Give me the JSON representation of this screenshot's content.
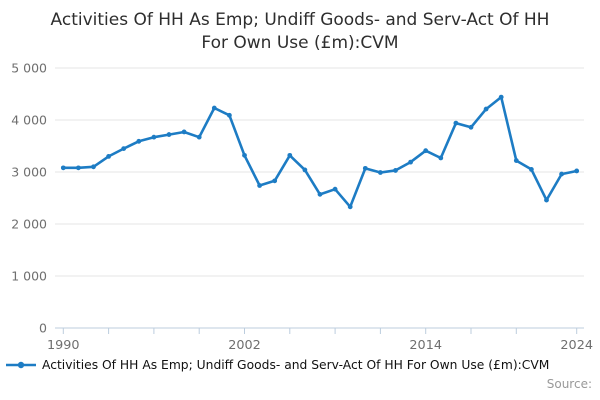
{
  "title": {
    "line1": "Activities Of HH As Emp; Undiff Goods- and Serv-Act Of HH",
    "line2": "For Own Use (£m):CVM"
  },
  "legend": {
    "label": "Activities Of HH As Emp; Undiff Goods- and Serv-Act Of HH For Own Use (£m):CVM"
  },
  "source_label": "Source:",
  "colors": {
    "line": "#1d7cc4",
    "grid": "#e6e6e6",
    "axis": "#bccdde",
    "tick_label": "#6f6f6f"
  },
  "chart_data": {
    "type": "line",
    "title": "Activities Of HH As Emp; Undiff Goods- and Serv-Act Of HH For Own Use (£m):CVM",
    "xlabel": "",
    "ylabel": "",
    "xlim": [
      1990,
      2024
    ],
    "ylim": [
      0,
      5000
    ],
    "grid": "horizontal",
    "legend_position": "bottom-left",
    "x": [
      1990,
      1991,
      1992,
      1993,
      1994,
      1995,
      1996,
      1997,
      1998,
      1999,
      2000,
      2001,
      2002,
      2003,
      2004,
      2005,
      2006,
      2007,
      2008,
      2009,
      2010,
      2011,
      2012,
      2013,
      2014,
      2015,
      2016,
      2017,
      2018,
      2019,
      2020,
      2021,
      2022,
      2023,
      2024
    ],
    "values": [
      3080,
      3080,
      3100,
      3300,
      3450,
      3590,
      3670,
      3720,
      3770,
      3670,
      4230,
      4090,
      3320,
      2740,
      2830,
      3320,
      3040,
      2570,
      2670,
      2330,
      3070,
      2990,
      3030,
      3190,
      3410,
      3270,
      3940,
      3860,
      4210,
      4440,
      3220,
      3050,
      2460,
      2960,
      3020
    ],
    "y_ticks": [
      {
        "value": 0,
        "label": "0"
      },
      {
        "value": 1000,
        "label": "1 000"
      },
      {
        "value": 2000,
        "label": "2 000"
      },
      {
        "value": 3000,
        "label": "3 000"
      },
      {
        "value": 4000,
        "label": "4 000"
      },
      {
        "value": 5000,
        "label": "5 000"
      }
    ],
    "x_ticks": [
      1990,
      1993,
      1996,
      1999,
      2002,
      2005,
      2008,
      2011,
      2014,
      2017,
      2020,
      2024
    ],
    "x_tick_labels": [
      {
        "value": 1990,
        "label": "1990"
      },
      {
        "value": 2002,
        "label": "2002"
      },
      {
        "value": 2014,
        "label": "2014"
      },
      {
        "value": 2024,
        "label": "2024"
      }
    ]
  }
}
